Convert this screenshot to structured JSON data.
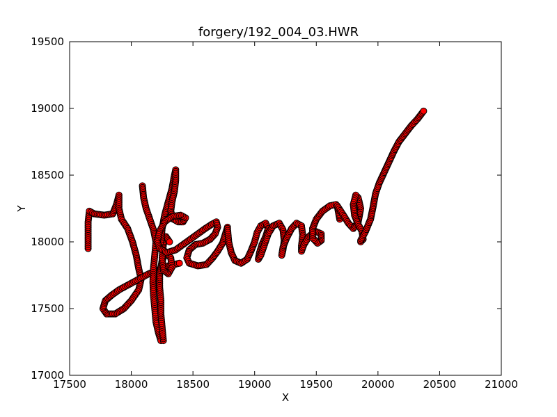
{
  "chart_data": {
    "type": "scatter",
    "title": "forgery/192_004_03.HWR",
    "xlabel": "X",
    "ylabel": "Y",
    "xlim": [
      17500,
      21000
    ],
    "ylim": [
      17000,
      19500
    ],
    "xticks": [
      17500,
      18000,
      18500,
      19000,
      19500,
      20000,
      20500,
      21000
    ],
    "yticks": [
      17000,
      17500,
      18000,
      18500,
      19000,
      19500
    ],
    "xtick_labels": [
      "17500",
      "18000",
      "18500",
      "19000",
      "19500",
      "20000",
      "20500",
      "21000"
    ],
    "ytick_labels": [
      "17000",
      "17500",
      "18000",
      "18500",
      "19000",
      "19500"
    ],
    "grid": false,
    "marker_color": "#ff0000",
    "marker_edge_color": "#000000",
    "strokes": [
      [
        [
          17650,
          17950
        ],
        [
          17650,
          18050
        ],
        [
          17650,
          18150
        ],
        [
          17660,
          18230
        ],
        [
          17700,
          18210
        ],
        [
          17780,
          18200
        ],
        [
          17850,
          18210
        ],
        [
          17880,
          18280
        ],
        [
          17900,
          18350
        ],
        [
          17900,
          18250
        ],
        [
          17920,
          18170
        ],
        [
          17970,
          18100
        ],
        [
          18010,
          18000
        ],
        [
          18040,
          17900
        ],
        [
          18060,
          17800
        ],
        [
          18080,
          17720
        ],
        [
          18060,
          17640
        ],
        [
          18000,
          17560
        ],
        [
          17940,
          17500
        ],
        [
          17870,
          17460
        ],
        [
          17800,
          17460
        ],
        [
          17770,
          17500
        ],
        [
          17790,
          17560
        ],
        [
          17840,
          17600
        ],
        [
          17900,
          17640
        ],
        [
          17980,
          17680
        ],
        [
          18060,
          17720
        ],
        [
          18140,
          17760
        ],
        [
          18220,
          17790
        ],
        [
          18300,
          17820
        ],
        [
          18390,
          17840
        ]
      ],
      [
        [
          18090,
          18420
        ],
        [
          18100,
          18330
        ],
        [
          18120,
          18250
        ],
        [
          18150,
          18170
        ],
        [
          18180,
          18090
        ],
        [
          18200,
          18000
        ],
        [
          18190,
          17900
        ],
        [
          18180,
          17800
        ],
        [
          18175,
          17700
        ],
        [
          18180,
          17600
        ],
        [
          18190,
          17500
        ],
        [
          18200,
          17400
        ],
        [
          18220,
          17320
        ],
        [
          18240,
          17260
        ],
        [
          18260,
          17260
        ],
        [
          18250,
          17360
        ],
        [
          18240,
          17460
        ],
        [
          18240,
          17560
        ],
        [
          18230,
          17660
        ],
        [
          18230,
          17760
        ],
        [
          18250,
          17860
        ],
        [
          18280,
          17920
        ],
        [
          18320,
          17880
        ],
        [
          18330,
          17810
        ],
        [
          18300,
          17760
        ],
        [
          18260,
          17790
        ],
        [
          18250,
          17880
        ],
        [
          18260,
          17980
        ],
        [
          18280,
          18040
        ],
        [
          18310,
          18000
        ]
      ],
      [
        [
          18240,
          18000
        ],
        [
          18250,
          18100
        ],
        [
          18270,
          18200
        ],
        [
          18300,
          18300
        ],
        [
          18330,
          18400
        ],
        [
          18350,
          18500
        ],
        [
          18360,
          18540
        ],
        [
          18360,
          18460
        ],
        [
          18350,
          18380
        ],
        [
          18330,
          18300
        ],
        [
          18320,
          18230
        ],
        [
          18340,
          18170
        ],
        [
          18380,
          18150
        ],
        [
          18420,
          18150
        ],
        [
          18440,
          18180
        ],
        [
          18400,
          18200
        ],
        [
          18330,
          18190
        ],
        [
          18270,
          18150
        ],
        [
          18230,
          18080
        ],
        [
          18210,
          18000
        ],
        [
          18230,
          17950
        ],
        [
          18290,
          17920
        ],
        [
          18360,
          17940
        ],
        [
          18420,
          17980
        ],
        [
          18480,
          18020
        ],
        [
          18540,
          18060
        ],
        [
          18600,
          18100
        ],
        [
          18650,
          18130
        ],
        [
          18690,
          18150
        ],
        [
          18700,
          18110
        ],
        [
          18680,
          18060
        ],
        [
          18640,
          18020
        ],
        [
          18580,
          17990
        ],
        [
          18520,
          17980
        ],
        [
          18470,
          17940
        ],
        [
          18450,
          17880
        ],
        [
          18470,
          17840
        ],
        [
          18540,
          17820
        ],
        [
          18610,
          17830
        ],
        [
          18660,
          17880
        ],
        [
          18700,
          17930
        ],
        [
          18740,
          17990
        ],
        [
          18760,
          18050
        ],
        [
          18780,
          18110
        ]
      ],
      [
        [
          18780,
          18100
        ],
        [
          18790,
          18000
        ],
        [
          18810,
          17920
        ],
        [
          18840,
          17860
        ],
        [
          18890,
          17840
        ],
        [
          18940,
          17870
        ],
        [
          18970,
          17930
        ],
        [
          19000,
          18000
        ],
        [
          19020,
          18070
        ],
        [
          19050,
          18120
        ],
        [
          19090,
          18140
        ],
        [
          19110,
          18100
        ],
        [
          19090,
          18040
        ],
        [
          19060,
          17980
        ],
        [
          19040,
          17920
        ],
        [
          19030,
          17870
        ],
        [
          19050,
          17900
        ],
        [
          19080,
          17980
        ],
        [
          19110,
          18060
        ],
        [
          19150,
          18120
        ],
        [
          19200,
          18140
        ],
        [
          19230,
          18090
        ],
        [
          19240,
          18010
        ],
        [
          19230,
          17940
        ],
        [
          19220,
          17900
        ],
        [
          19230,
          17960
        ],
        [
          19260,
          18030
        ],
        [
          19300,
          18100
        ],
        [
          19340,
          18140
        ],
        [
          19380,
          18120
        ],
        [
          19390,
          18050
        ],
        [
          19380,
          17970
        ],
        [
          19380,
          17930
        ],
        [
          19400,
          17980
        ],
        [
          19440,
          18040
        ],
        [
          19490,
          18080
        ],
        [
          19540,
          18060
        ],
        [
          19540,
          18010
        ],
        [
          19510,
          17990
        ],
        [
          19470,
          18030
        ],
        [
          19470,
          18100
        ],
        [
          19500,
          18170
        ],
        [
          19550,
          18230
        ],
        [
          19610,
          18270
        ],
        [
          19660,
          18280
        ],
        [
          19690,
          18230
        ],
        [
          19690,
          18170
        ],
        [
          19680,
          18220
        ],
        [
          19670,
          18270
        ],
        [
          19720,
          18200
        ],
        [
          19760,
          18140
        ],
        [
          19800,
          18100
        ],
        [
          19840,
          18150
        ],
        [
          19860,
          18250
        ],
        [
          19840,
          18330
        ],
        [
          19820,
          18350
        ],
        [
          19800,
          18280
        ],
        [
          19810,
          18200
        ],
        [
          19840,
          18130
        ],
        [
          19870,
          18080
        ],
        [
          19880,
          18020
        ],
        [
          19860,
          18000
        ]
      ],
      [
        [
          19860,
          18010
        ],
        [
          19900,
          18080
        ],
        [
          19940,
          18170
        ],
        [
          19960,
          18260
        ],
        [
          19980,
          18360
        ],
        [
          20010,
          18440
        ],
        [
          20050,
          18520
        ],
        [
          20090,
          18600
        ],
        [
          20130,
          18680
        ],
        [
          20170,
          18750
        ],
        [
          20220,
          18810
        ],
        [
          20270,
          18870
        ],
        [
          20320,
          18920
        ],
        [
          20370,
          18980
        ]
      ]
    ]
  }
}
